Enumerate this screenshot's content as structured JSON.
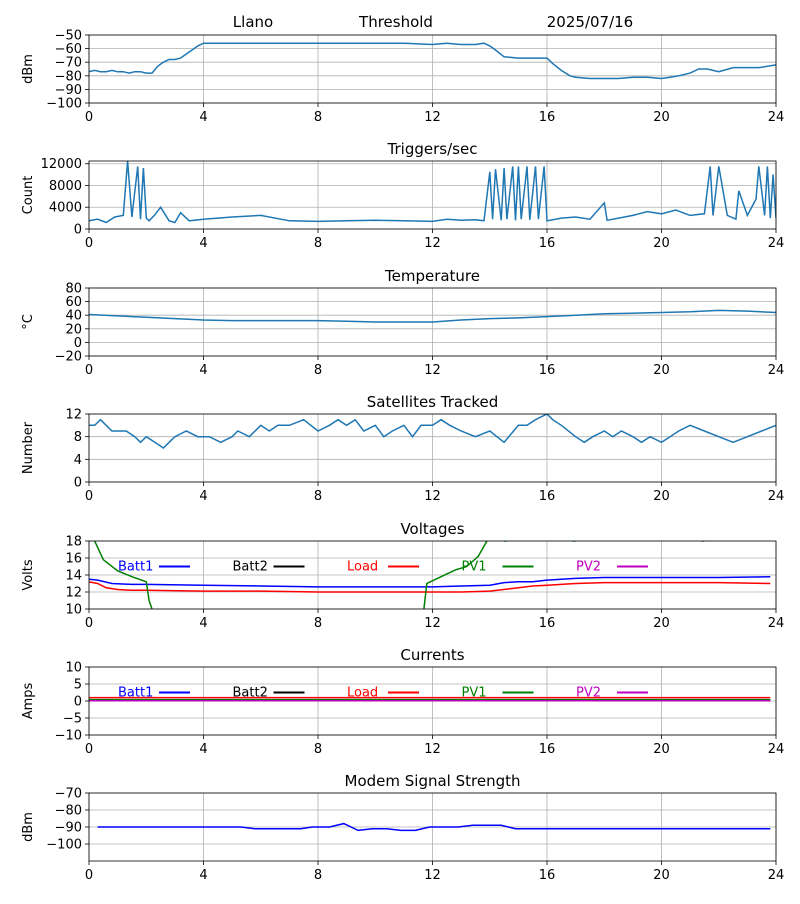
{
  "header": {
    "station": "Llano",
    "mode": "Threshold",
    "date": "2025/07/16"
  },
  "colors": {
    "series_default": "#1f77b4",
    "batt1": "#0000ff",
    "batt2": "#000000",
    "load": "#ff0000",
    "pv1": "#008000",
    "pv2": "#bf00bf",
    "grid": "#b0b0b0"
  },
  "chart_data": [
    {
      "type": "line",
      "title": "",
      "ylabel": "dBm",
      "x_ticks": [
        0,
        4,
        8,
        12,
        16,
        20,
        24
      ],
      "xlim": [
        0,
        24
      ],
      "ylim": [
        -100,
        -50
      ],
      "y_ticks": [
        -100,
        -90,
        -80,
        -70,
        -60,
        -50
      ],
      "grid": true,
      "series": [
        {
          "color": "#1f77b4",
          "x": [
            0,
            0.2,
            0.4,
            0.6,
            0.8,
            1,
            1.2,
            1.4,
            1.6,
            1.8,
            2,
            2.2,
            2.4,
            2.6,
            2.8,
            3,
            3.2,
            3.4,
            3.6,
            3.8,
            4,
            5,
            6,
            7,
            8,
            9,
            10,
            11,
            12,
            12.5,
            13,
            13.3,
            13.5,
            13.8,
            14,
            14.2,
            14.5,
            15,
            15.5,
            15.8,
            16,
            16.2,
            16.5,
            16.8,
            17,
            17.5,
            18,
            18.5,
            19,
            19.5,
            20,
            20.3,
            20.6,
            21,
            21.3,
            21.6,
            22,
            22.5,
            23,
            23.4,
            23.7,
            24
          ],
          "y": [
            -77,
            -76,
            -77,
            -77,
            -76,
            -77,
            -77,
            -78,
            -77,
            -77,
            -78,
            -78,
            -73,
            -70,
            -68,
            -68,
            -67,
            -64,
            -61,
            -58,
            -56,
            -56,
            -56,
            -56,
            -56,
            -56,
            -56,
            -56,
            -57,
            -56,
            -57,
            -57,
            -57,
            -56,
            -58,
            -61,
            -66,
            -67,
            -67,
            -67,
            -67,
            -71,
            -76,
            -80,
            -81,
            -82,
            -82,
            -82,
            -81,
            -81,
            -82,
            -81,
            -80,
            -78,
            -75,
            -75,
            -77,
            -74,
            -74,
            -74,
            -73,
            -72
          ]
        }
      ]
    },
    {
      "type": "line",
      "title": "Triggers/sec",
      "ylabel": "Count",
      "x_ticks": [
        0,
        4,
        8,
        12,
        16,
        20,
        24
      ],
      "xlim": [
        0,
        24
      ],
      "ylim": [
        0,
        12500
      ],
      "y_ticks": [
        0,
        4000,
        8000,
        12000
      ],
      "grid": true,
      "series": [
        {
          "color": "#1f77b4",
          "x": [
            0,
            0.3,
            0.6,
            0.9,
            1.2,
            1.35,
            1.5,
            1.7,
            1.8,
            1.9,
            2,
            2.1,
            2.3,
            2.5,
            2.8,
            3,
            3.2,
            3.5,
            4,
            5,
            6,
            7,
            8,
            9,
            10,
            11,
            12,
            12.5,
            13,
            13.5,
            13.8,
            14,
            14.1,
            14.2,
            14.4,
            14.5,
            14.6,
            14.8,
            14.9,
            15,
            15.1,
            15.3,
            15.4,
            15.6,
            15.7,
            15.9,
            16,
            16.5,
            17,
            17.5,
            18,
            18.1,
            18.5,
            19,
            19.5,
            20,
            20.5,
            21,
            21.5,
            21.7,
            21.8,
            22,
            22.3,
            22.6,
            22.7,
            23,
            23.3,
            23.4,
            23.6,
            23.7,
            23.8,
            23.9,
            24
          ],
          "y": [
            1500,
            1800,
            1200,
            2200,
            2500,
            12500,
            2200,
            11500,
            1800,
            11200,
            2000,
            1500,
            2600,
            4000,
            1500,
            1200,
            3000,
            1500,
            1800,
            2200,
            2500,
            1500,
            1400,
            1500,
            1600,
            1500,
            1400,
            1800,
            1600,
            1700,
            1500,
            10500,
            1800,
            11000,
            1600,
            11200,
            1800,
            11500,
            1600,
            11500,
            1800,
            11500,
            1700,
            11500,
            1800,
            11500,
            1500,
            2000,
            2200,
            1800,
            4800,
            1600,
            2000,
            2500,
            3200,
            2800,
            3500,
            2500,
            2800,
            11500,
            2500,
            11500,
            2500,
            1800,
            7000,
            2500,
            5500,
            11500,
            2500,
            11500,
            2000,
            10000,
            2000
          ]
        }
      ]
    },
    {
      "type": "line",
      "title": "Temperature",
      "ylabel": "°C",
      "x_ticks": [
        0,
        4,
        8,
        12,
        16,
        20,
        24
      ],
      "xlim": [
        0,
        24
      ],
      "ylim": [
        -20,
        80
      ],
      "y_ticks": [
        -20,
        0,
        20,
        40,
        60,
        80
      ],
      "grid": true,
      "series": [
        {
          "color": "#1f77b4",
          "x": [
            0,
            1,
            2,
            3,
            4,
            5,
            6,
            7,
            8,
            9,
            10,
            11,
            12,
            13,
            14,
            15,
            16,
            17,
            18,
            19,
            20,
            21,
            22,
            23,
            24
          ],
          "y": [
            41,
            39,
            37,
            35,
            33,
            32,
            32,
            32,
            32,
            31,
            30,
            30,
            30,
            33,
            35,
            36,
            38,
            40,
            42,
            43,
            44,
            45,
            47,
            46,
            44
          ]
        }
      ]
    },
    {
      "type": "line",
      "title": "Satellites Tracked",
      "ylabel": "Number",
      "x_ticks": [
        0,
        4,
        8,
        12,
        16,
        20,
        24
      ],
      "xlim": [
        0,
        24
      ],
      "ylim": [
        0,
        12
      ],
      "y_ticks": [
        0,
        4,
        8,
        12
      ],
      "grid": true,
      "series": [
        {
          "color": "#1f77b4",
          "x": [
            0,
            0.2,
            0.4,
            0.6,
            0.8,
            1,
            1.3,
            1.6,
            1.8,
            2,
            2.3,
            2.6,
            2.8,
            3,
            3.4,
            3.8,
            4.2,
            4.6,
            5,
            5.2,
            5.6,
            6,
            6.3,
            6.6,
            7,
            7.5,
            8,
            8.4,
            8.7,
            9,
            9.3,
            9.6,
            10,
            10.3,
            10.6,
            11,
            11.3,
            11.6,
            12,
            12.3,
            12.6,
            13,
            13.5,
            14,
            14.5,
            15,
            15.3,
            15.6,
            16,
            16.2,
            16.5,
            17,
            17.3,
            17.6,
            18,
            18.3,
            18.6,
            19,
            19.3,
            19.6,
            20,
            20.3,
            20.6,
            21,
            21.5,
            22,
            22.5,
            23,
            23.5,
            24
          ],
          "y": [
            10,
            10,
            11,
            10,
            9,
            9,
            9,
            8,
            7,
            8,
            7,
            6,
            7,
            8,
            9,
            8,
            8,
            7,
            8,
            9,
            8,
            10,
            9,
            10,
            10,
            11,
            9,
            10,
            11,
            10,
            11,
            9,
            10,
            8,
            9,
            10,
            8,
            10,
            10,
            11,
            10,
            9,
            8,
            9,
            7,
            10,
            10,
            11,
            12,
            11,
            10,
            8,
            7,
            8,
            9,
            8,
            9,
            8,
            7,
            8,
            7,
            8,
            9,
            10,
            9,
            8,
            7,
            8,
            9,
            10
          ]
        }
      ]
    },
    {
      "type": "line",
      "title": "Voltages",
      "ylabel": "Volts",
      "x_ticks": [
        0,
        4,
        8,
        12,
        16,
        20,
        24
      ],
      "xlim": [
        0,
        24
      ],
      "ylim": [
        10,
        18
      ],
      "y_ticks": [
        10,
        12,
        14,
        16,
        18
      ],
      "grid": true,
      "legend": [
        {
          "name": "Batt1",
          "color": "#0000ff"
        },
        {
          "name": "Batt2",
          "color": "#000000"
        },
        {
          "name": "Load",
          "color": "#ff0000"
        },
        {
          "name": "PV1",
          "color": "#008000"
        },
        {
          "name": "PV2",
          "color": "#bf00bf"
        }
      ],
      "series": [
        {
          "color": "#0000ff",
          "x": [
            0,
            0.3,
            0.8,
            1.5,
            2,
            4,
            6,
            8,
            10,
            12,
            13,
            14,
            14.5,
            15,
            15.5,
            16,
            17,
            18,
            20,
            22,
            23.8
          ],
          "y": [
            13.5,
            13.4,
            13,
            12.9,
            12.9,
            12.8,
            12.7,
            12.6,
            12.6,
            12.6,
            12.7,
            12.8,
            13.1,
            13.2,
            13.2,
            13.4,
            13.6,
            13.7,
            13.7,
            13.7,
            13.8
          ]
        },
        {
          "color": "#ff0000",
          "x": [
            0,
            0.3,
            0.6,
            1,
            1.5,
            2,
            4,
            6,
            8,
            10,
            12,
            13,
            14,
            15,
            15.5,
            16,
            17,
            18,
            20,
            22,
            23.8
          ],
          "y": [
            13.2,
            13,
            12.5,
            12.3,
            12.2,
            12.2,
            12.1,
            12.1,
            12,
            12,
            12,
            12,
            12.1,
            12.5,
            12.7,
            12.8,
            13,
            13.1,
            13.1,
            13.1,
            13
          ]
        },
        {
          "color": "#008000",
          "x": [
            0.2,
            0.5,
            1,
            1.5,
            2,
            2.1,
            2.2
          ],
          "y": [
            18,
            15.8,
            14.5,
            13.8,
            13.2,
            11,
            10
          ]
        },
        {
          "color": "#008000",
          "x": [
            11.7,
            11.8,
            12.3,
            12.8,
            13.2,
            13.6,
            13.9
          ],
          "y": [
            10,
            13,
            13.8,
            14.6,
            15,
            16.2,
            18
          ]
        },
        {
          "color": "#008000",
          "x": [
            14.5,
            14.6
          ],
          "y": [
            18,
            18
          ]
        },
        {
          "color": "#008000",
          "x": [
            16.9,
            17
          ],
          "y": [
            18,
            18
          ]
        },
        {
          "color": "#008000",
          "x": [
            21.4,
            21.5
          ],
          "y": [
            18,
            18
          ]
        }
      ]
    },
    {
      "type": "line",
      "title": "Currents",
      "ylabel": "Amps",
      "x_ticks": [
        0,
        4,
        8,
        12,
        16,
        20,
        24
      ],
      "xlim": [
        0,
        24
      ],
      "ylim": [
        -10,
        10
      ],
      "y_ticks": [
        -10,
        -5,
        0,
        5,
        10
      ],
      "grid": true,
      "legend": [
        {
          "name": "Batt1",
          "color": "#0000ff"
        },
        {
          "name": "Batt2",
          "color": "#000000"
        },
        {
          "name": "Load",
          "color": "#ff0000"
        },
        {
          "name": "PV1",
          "color": "#008000"
        },
        {
          "name": "PV2",
          "color": "#bf00bf"
        }
      ],
      "series": [
        {
          "color": "#0000ff",
          "x": [
            0,
            23.8
          ],
          "y": [
            0.3,
            0.3
          ]
        },
        {
          "color": "#008000",
          "x": [
            0,
            23.8
          ],
          "y": [
            0.4,
            0.4
          ]
        },
        {
          "color": "#ff0000",
          "x": [
            0,
            23.8
          ],
          "y": [
            1.0,
            1.0
          ]
        },
        {
          "color": "#bf00bf",
          "x": [
            0,
            23.8
          ],
          "y": [
            0.1,
            0.1
          ]
        }
      ]
    },
    {
      "type": "line",
      "title": "Modem Signal Strength",
      "ylabel": "dBm",
      "x_ticks": [
        0,
        4,
        8,
        12,
        16,
        20,
        24
      ],
      "xlim": [
        0,
        24
      ],
      "ylim": [
        -110,
        -70
      ],
      "y_ticks": [
        -100,
        -90,
        -80,
        -70
      ],
      "grid": true,
      "series": [
        {
          "color": "#0000ff",
          "x": [
            0.3,
            1,
            2,
            3,
            4,
            5,
            5.3,
            5.8,
            6,
            7,
            7.4,
            7.8,
            8,
            8.4,
            8.9,
            9.4,
            9.9,
            10.4,
            10.9,
            11.4,
            11.9,
            12,
            12.4,
            12.9,
            13.4,
            13.9,
            14.4,
            14.9,
            15.4,
            16,
            17,
            18,
            19,
            20,
            21,
            22,
            23,
            23.8
          ],
          "y": [
            -90,
            -90,
            -90,
            -90,
            -90,
            -90,
            -90,
            -91,
            -91,
            -91,
            -91,
            -90,
            -90,
            -90,
            -88,
            -92,
            -91,
            -91,
            -92,
            -92,
            -90,
            -90,
            -90,
            -90,
            -89,
            -89,
            -89,
            -91,
            -91,
            -91,
            -91,
            -91,
            -91,
            -91,
            -91,
            -91,
            -91,
            -91
          ]
        }
      ]
    }
  ]
}
